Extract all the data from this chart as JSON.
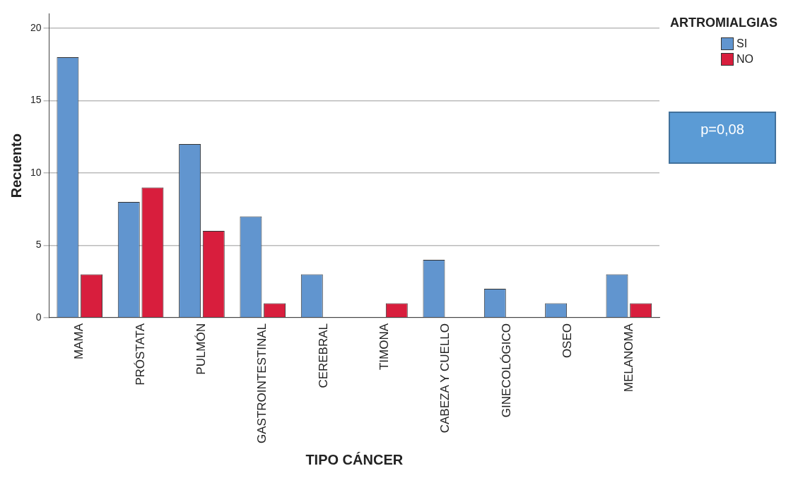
{
  "chart_data": {
    "type": "bar",
    "xlabel": "TIPO CÁNCER",
    "ylabel": "Recuento",
    "legend_title": "ARTROMIALGIAS",
    "legend": "top right",
    "grid": "y",
    "categories": [
      "MAMA",
      "PRÓSTATA",
      "PULMÓN",
      "GASTROINTESTINAL",
      "CEREBRAL",
      "TIMONA",
      "CABEZA Y CUELLO",
      "GINECOLÓGICO",
      "OSEO",
      "MELANOMA"
    ],
    "series": [
      {
        "name": "SI",
        "color": "#6195cf",
        "values": [
          18,
          8,
          12,
          7,
          3,
          null,
          4,
          2,
          1,
          3
        ]
      },
      {
        "name": "NO",
        "color": "#d81e3d",
        "values": [
          3,
          9,
          6,
          1,
          null,
          1,
          null,
          null,
          null,
          1
        ]
      }
    ],
    "ylim": [
      0,
      21
    ],
    "yticks": [
      0,
      5,
      10,
      15,
      20
    ],
    "annotations": [
      "p=0,08"
    ]
  }
}
